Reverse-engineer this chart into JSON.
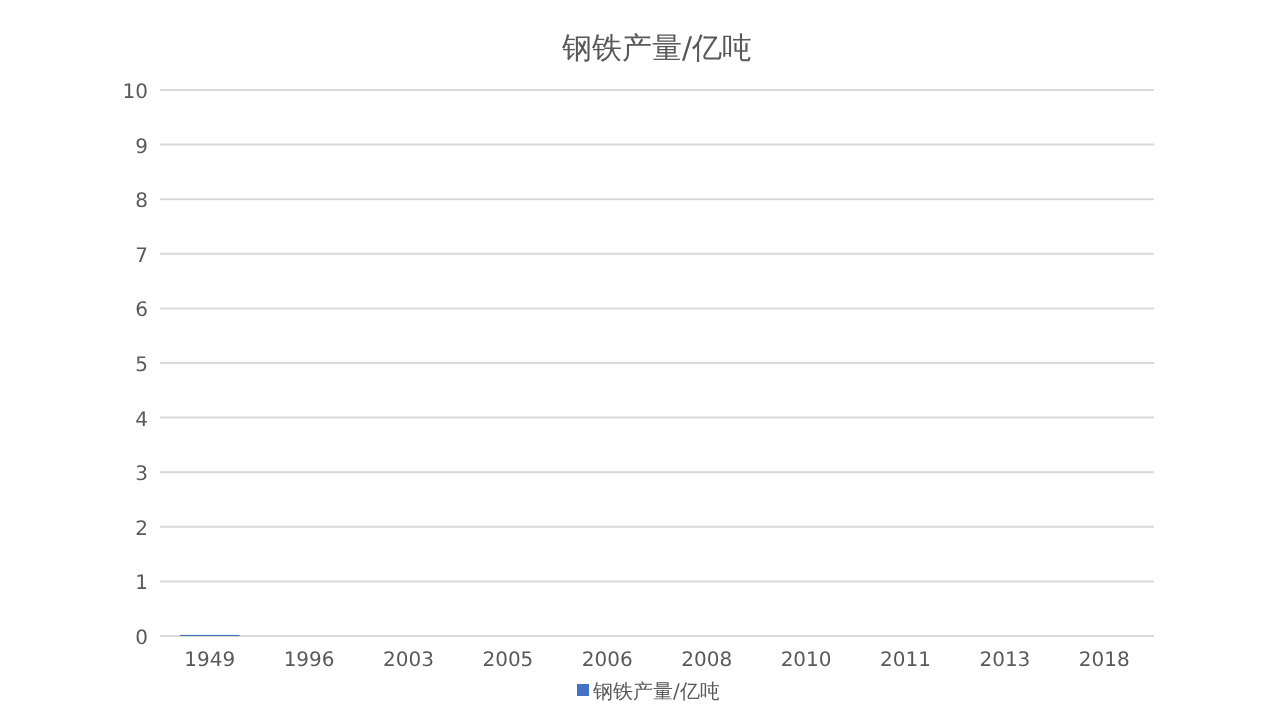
{
  "chart_data": {
    "type": "bar",
    "title": "钢铁产量/亿吨",
    "categories": [
      "1949",
      "1996",
      "2003",
      "2005",
      "2006",
      "2008",
      "2010",
      "2011",
      "2013",
      "2018"
    ],
    "series": [
      {
        "name": "钢铁产量/亿吨",
        "color": "#4472c4",
        "values": [
          0.02,
          null,
          null,
          null,
          null,
          null,
          null,
          null,
          null,
          null
        ]
      }
    ],
    "ylim": [
      0,
      10
    ],
    "yticks": [
      0,
      1,
      2,
      3,
      4,
      5,
      6,
      7,
      8,
      9,
      10
    ],
    "grid": "y",
    "legend": "bottom"
  }
}
